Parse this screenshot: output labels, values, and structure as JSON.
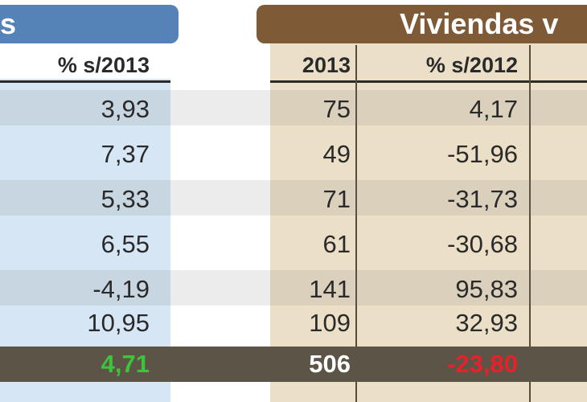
{
  "left_block": {
    "title": "s",
    "header": "% s/2013"
  },
  "right_block": {
    "title": "Viviendas v",
    "headers": [
      "2013",
      "% s/2012"
    ]
  },
  "colors": {
    "left_title_bg": "#5582b7",
    "left_column_bg": "#d6e6f4",
    "right_title_bg": "#7e5a37",
    "right_column_bg": "#ebdfc8",
    "total_row_bg": "#5c5547",
    "total_positive": "#3cc43c",
    "total_negative": "#e8202a"
  },
  "chart_data": {
    "type": "table",
    "columns": [
      "% s/2013",
      "2013",
      "% s/2012"
    ],
    "rows": [
      [
        "3,93",
        "75",
        "4,17"
      ],
      [
        "7,37",
        "49",
        "-51,96"
      ],
      [
        "5,33",
        "71",
        "-31,73"
      ],
      [
        "6,55",
        "61",
        "-30,68"
      ],
      [
        "-4,19",
        "141",
        "95,83"
      ],
      [
        "10,95",
        "109",
        "32,93"
      ]
    ],
    "total": [
      "4,71",
      "506",
      "-23,80"
    ]
  }
}
